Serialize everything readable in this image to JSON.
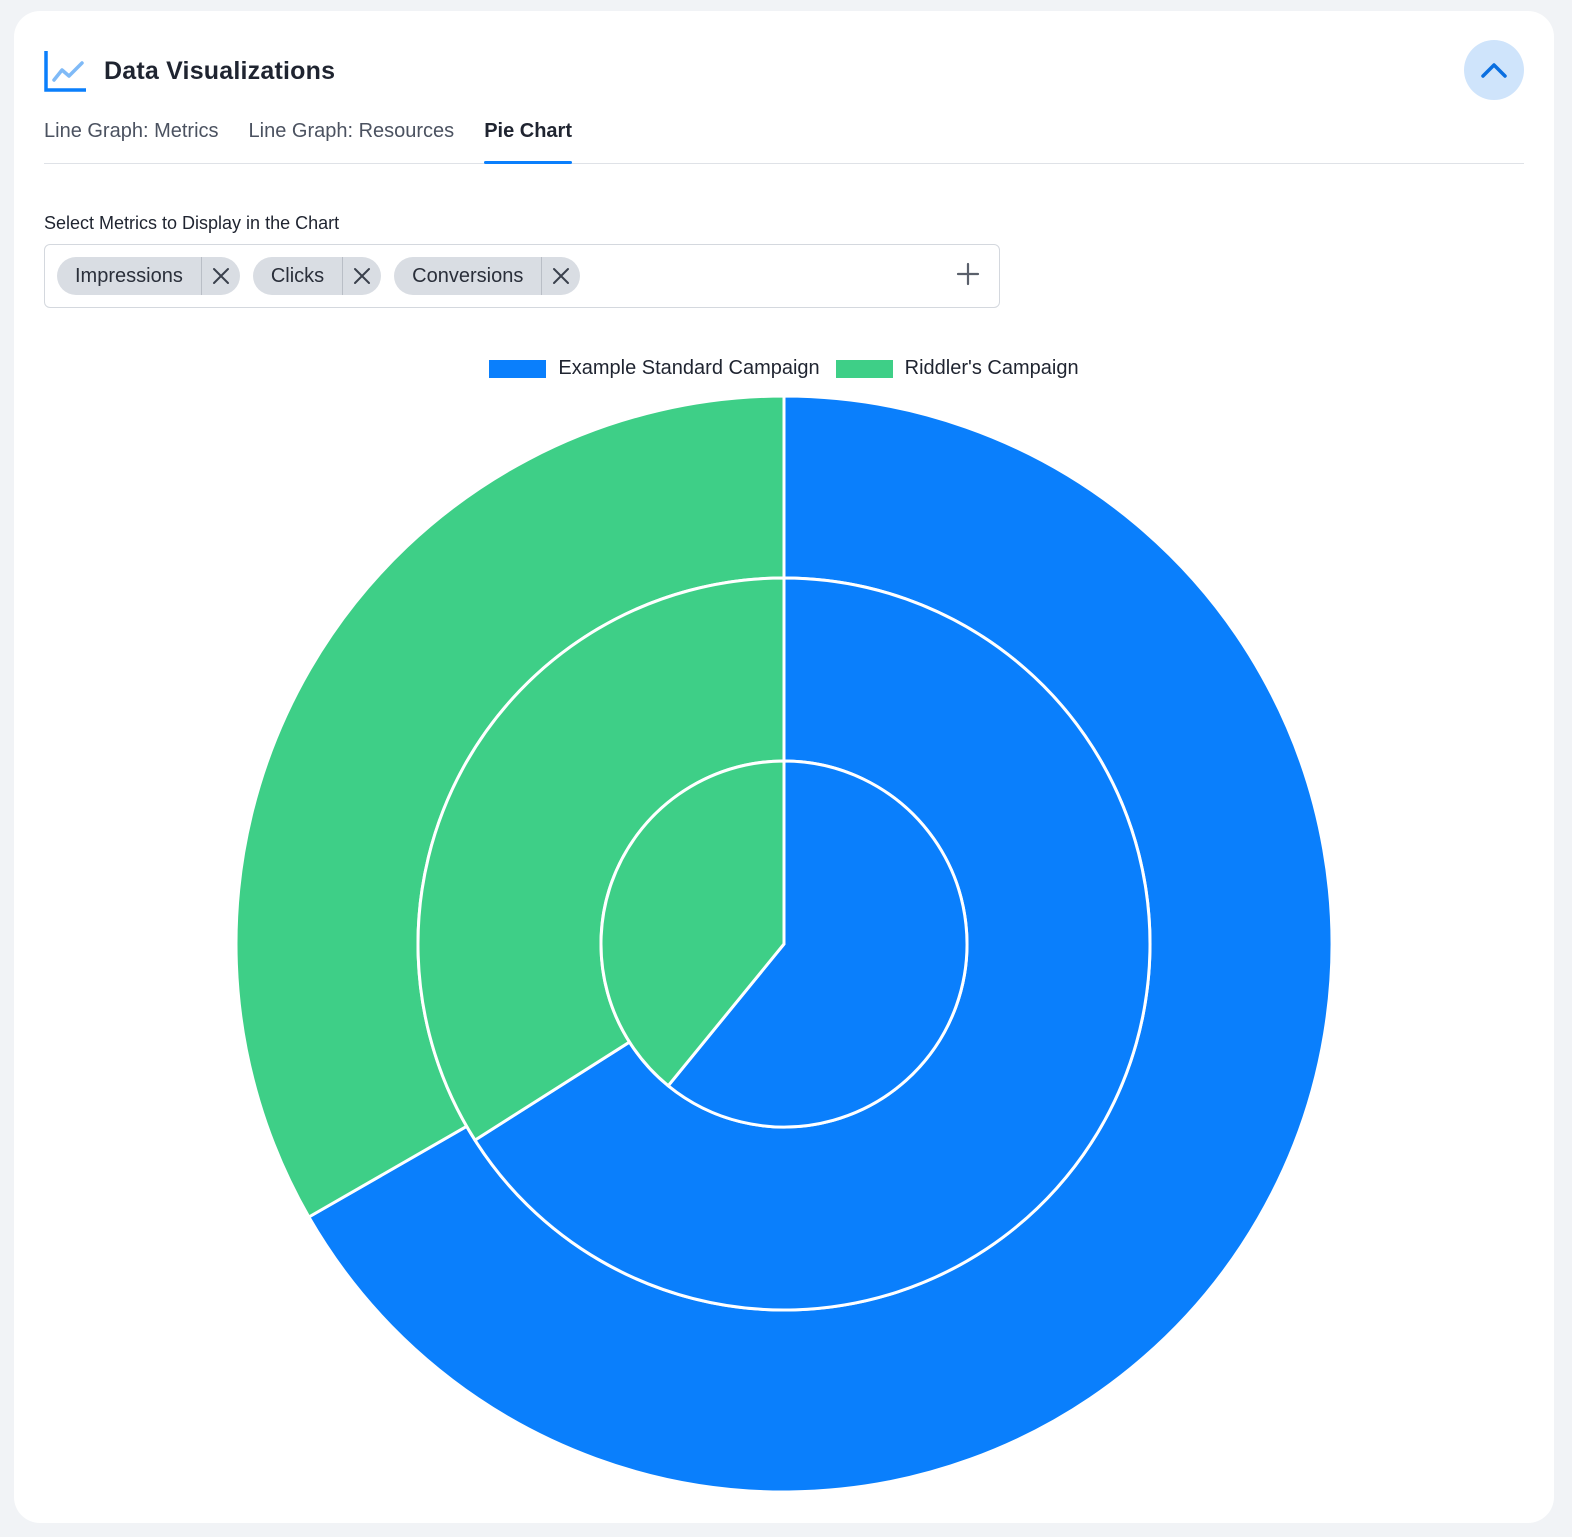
{
  "header": {
    "title": "Data Visualizations",
    "icon": "line-chart-icon",
    "collapse_icon": "chevron-up-icon"
  },
  "tabs": [
    {
      "label": "Line Graph: Metrics",
      "active": false
    },
    {
      "label": "Line Graph: Resources",
      "active": false
    },
    {
      "label": "Pie Chart",
      "active": true
    }
  ],
  "metrics": {
    "label": "Select Metrics to Display in the Chart",
    "selected": [
      {
        "label": "Impressions"
      },
      {
        "label": "Clicks"
      },
      {
        "label": "Conversions"
      }
    ],
    "add_icon": "plus-icon",
    "remove_icon": "close-icon"
  },
  "colors": {
    "accent": "#0a7ffc",
    "series_a": "#0a7ffc",
    "series_b": "#3ecf87",
    "chip_bg": "#d9dde3"
  },
  "chart_data": {
    "type": "pie",
    "title": "",
    "legend_position": "top",
    "legend": [
      "Example Standard Campaign",
      "Riddler's Campaign"
    ],
    "series": [
      {
        "ring": "outer",
        "metric": "Impressions",
        "values": [
          66.7,
          33.3
        ]
      },
      {
        "ring": "middle",
        "metric": "Clicks",
        "values": [
          66.0,
          34.0
        ]
      },
      {
        "ring": "inner",
        "metric": "Conversions",
        "values": [
          60.9,
          39.1
        ]
      }
    ]
  }
}
